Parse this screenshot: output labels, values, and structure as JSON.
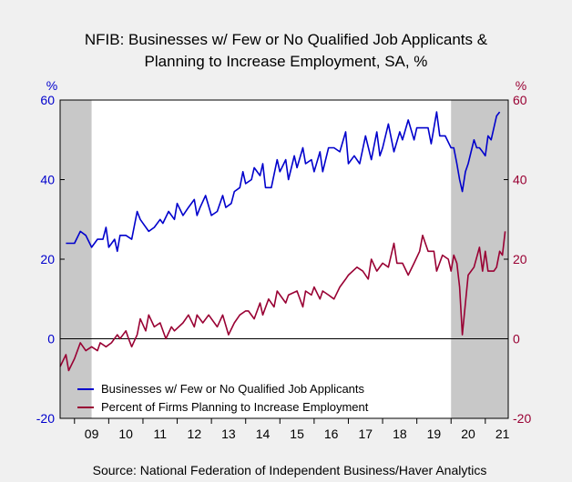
{
  "chart_data": {
    "type": "line",
    "title_line1": "NFIB: Businesses w/ Few or No Qualified Job Applicants &",
    "title_line2": "Planning to Increase Employment, SA, %",
    "left_axis": {
      "unit": "%",
      "range": [
        -20,
        60
      ],
      "ticks": [
        -20,
        0,
        20,
        40,
        60
      ],
      "color": "#0000cc"
    },
    "right_axis": {
      "unit": "%",
      "range": [
        -20,
        60
      ],
      "ticks": [
        -20,
        0,
        20,
        40,
        60
      ],
      "color": "#990033"
    },
    "x_axis": {
      "range": [
        2008.58,
        2021.67
      ],
      "tick_labels": [
        "09",
        "10",
        "11",
        "12",
        "13",
        "14",
        "15",
        "16",
        "17",
        "18",
        "19",
        "20",
        "21"
      ],
      "label_years": [
        2009,
        2010,
        2011,
        2012,
        2013,
        2014,
        2015,
        2016,
        2017,
        2018,
        2019,
        2020,
        2021
      ]
    },
    "recessions": [
      [
        2008.58,
        2009.5
      ],
      [
        2020.0,
        2021.67
      ]
    ],
    "zero_line": 0,
    "legend_position": "bottom-left",
    "series": [
      {
        "name": "Businesses w/ Few or No Qualified Job Applicants",
        "color": "#0000cc",
        "axis": "left",
        "points": [
          [
            2008.75,
            24
          ],
          [
            2009.0,
            24
          ],
          [
            2009.17,
            27
          ],
          [
            2009.33,
            26
          ],
          [
            2009.5,
            23
          ],
          [
            2009.67,
            25
          ],
          [
            2009.83,
            25
          ],
          [
            2009.92,
            28
          ],
          [
            2010.0,
            23
          ],
          [
            2010.17,
            25
          ],
          [
            2010.25,
            22
          ],
          [
            2010.33,
            26
          ],
          [
            2010.5,
            26
          ],
          [
            2010.67,
            25
          ],
          [
            2010.83,
            32
          ],
          [
            2010.92,
            30
          ],
          [
            2011.0,
            29
          ],
          [
            2011.17,
            27
          ],
          [
            2011.33,
            28
          ],
          [
            2011.5,
            30
          ],
          [
            2011.58,
            29
          ],
          [
            2011.75,
            32
          ],
          [
            2011.92,
            30
          ],
          [
            2012.0,
            34
          ],
          [
            2012.17,
            31
          ],
          [
            2012.33,
            33
          ],
          [
            2012.5,
            35
          ],
          [
            2012.58,
            31
          ],
          [
            2012.67,
            33
          ],
          [
            2012.83,
            36
          ],
          [
            2013.0,
            31
          ],
          [
            2013.17,
            32
          ],
          [
            2013.33,
            36
          ],
          [
            2013.42,
            33
          ],
          [
            2013.58,
            34
          ],
          [
            2013.67,
            37
          ],
          [
            2013.83,
            38
          ],
          [
            2013.92,
            42
          ],
          [
            2014.0,
            39
          ],
          [
            2014.17,
            40
          ],
          [
            2014.25,
            43
          ],
          [
            2014.42,
            41
          ],
          [
            2014.5,
            44
          ],
          [
            2014.58,
            38
          ],
          [
            2014.75,
            38
          ],
          [
            2014.92,
            45
          ],
          [
            2015.0,
            42
          ],
          [
            2015.17,
            45
          ],
          [
            2015.25,
            40
          ],
          [
            2015.42,
            46
          ],
          [
            2015.5,
            43
          ],
          [
            2015.67,
            48
          ],
          [
            2015.75,
            44
          ],
          [
            2015.92,
            45
          ],
          [
            2016.0,
            42
          ],
          [
            2016.17,
            47
          ],
          [
            2016.25,
            42
          ],
          [
            2016.42,
            48
          ],
          [
            2016.58,
            48
          ],
          [
            2016.75,
            47
          ],
          [
            2016.92,
            52
          ],
          [
            2017.0,
            44
          ],
          [
            2017.17,
            46
          ],
          [
            2017.33,
            44
          ],
          [
            2017.5,
            51
          ],
          [
            2017.67,
            45
          ],
          [
            2017.83,
            52
          ],
          [
            2017.92,
            46
          ],
          [
            2018.0,
            48
          ],
          [
            2018.17,
            54
          ],
          [
            2018.33,
            47
          ],
          [
            2018.5,
            52
          ],
          [
            2018.58,
            50
          ],
          [
            2018.75,
            55
          ],
          [
            2018.92,
            50
          ],
          [
            2019.0,
            53
          ],
          [
            2019.17,
            53
          ],
          [
            2019.33,
            53
          ],
          [
            2019.42,
            49
          ],
          [
            2019.58,
            57
          ],
          [
            2019.67,
            51
          ],
          [
            2019.83,
            51
          ],
          [
            2020.0,
            48
          ],
          [
            2020.08,
            48
          ],
          [
            2020.17,
            44
          ],
          [
            2020.25,
            40
          ],
          [
            2020.33,
            37
          ],
          [
            2020.42,
            42
          ],
          [
            2020.5,
            44
          ],
          [
            2020.67,
            50
          ],
          [
            2020.75,
            48
          ],
          [
            2020.83,
            48
          ],
          [
            2020.92,
            47
          ],
          [
            2021.0,
            46
          ],
          [
            2021.08,
            51
          ],
          [
            2021.17,
            50
          ],
          [
            2021.33,
            56
          ],
          [
            2021.42,
            57
          ]
        ]
      },
      {
        "name": "Percent of Firms Planning to Increase Employment",
        "color": "#990033",
        "axis": "right",
        "points": [
          [
            2008.58,
            -7
          ],
          [
            2008.75,
            -4
          ],
          [
            2008.83,
            -8
          ],
          [
            2009.0,
            -5
          ],
          [
            2009.17,
            -1
          ],
          [
            2009.33,
            -3
          ],
          [
            2009.5,
            -2
          ],
          [
            2009.67,
            -3
          ],
          [
            2009.75,
            -1
          ],
          [
            2009.92,
            -2
          ],
          [
            2010.08,
            -1
          ],
          [
            2010.25,
            1
          ],
          [
            2010.33,
            0
          ],
          [
            2010.5,
            2
          ],
          [
            2010.58,
            0
          ],
          [
            2010.67,
            -2
          ],
          [
            2010.83,
            1
          ],
          [
            2010.92,
            5
          ],
          [
            2011.08,
            2
          ],
          [
            2011.17,
            6
          ],
          [
            2011.33,
            3
          ],
          [
            2011.5,
            4
          ],
          [
            2011.67,
            0
          ],
          [
            2011.83,
            3
          ],
          [
            2011.92,
            2
          ],
          [
            2012.17,
            4
          ],
          [
            2012.33,
            6
          ],
          [
            2012.5,
            3
          ],
          [
            2012.58,
            6
          ],
          [
            2012.75,
            4
          ],
          [
            2012.92,
            6
          ],
          [
            2013.17,
            3
          ],
          [
            2013.33,
            6
          ],
          [
            2013.5,
            1
          ],
          [
            2013.67,
            4
          ],
          [
            2013.83,
            6
          ],
          [
            2014.0,
            7
          ],
          [
            2014.08,
            7
          ],
          [
            2014.25,
            5
          ],
          [
            2014.42,
            9
          ],
          [
            2014.5,
            6
          ],
          [
            2014.67,
            10
          ],
          [
            2014.83,
            8
          ],
          [
            2014.92,
            12
          ],
          [
            2015.17,
            9
          ],
          [
            2015.25,
            11
          ],
          [
            2015.5,
            12
          ],
          [
            2015.67,
            8
          ],
          [
            2015.75,
            12
          ],
          [
            2015.92,
            11
          ],
          [
            2016.0,
            13
          ],
          [
            2016.17,
            10
          ],
          [
            2016.25,
            12
          ],
          [
            2016.42,
            11
          ],
          [
            2016.58,
            10
          ],
          [
            2016.75,
            13
          ],
          [
            2016.92,
            15
          ],
          [
            2017.0,
            16
          ],
          [
            2017.25,
            18
          ],
          [
            2017.42,
            17
          ],
          [
            2017.58,
            15
          ],
          [
            2017.67,
            20
          ],
          [
            2017.83,
            17
          ],
          [
            2018.0,
            19
          ],
          [
            2018.17,
            18
          ],
          [
            2018.33,
            24
          ],
          [
            2018.42,
            19
          ],
          [
            2018.58,
            19
          ],
          [
            2018.75,
            16
          ],
          [
            2018.92,
            19
          ],
          [
            2019.08,
            22
          ],
          [
            2019.17,
            26
          ],
          [
            2019.33,
            22
          ],
          [
            2019.5,
            22
          ],
          [
            2019.58,
            17
          ],
          [
            2019.75,
            21
          ],
          [
            2019.92,
            20
          ],
          [
            2020.0,
            17
          ],
          [
            2020.08,
            21
          ],
          [
            2020.17,
            19
          ],
          [
            2020.25,
            13
          ],
          [
            2020.33,
            1
          ],
          [
            2020.5,
            16
          ],
          [
            2020.67,
            18
          ],
          [
            2020.83,
            23
          ],
          [
            2020.92,
            17
          ],
          [
            2021.0,
            22
          ],
          [
            2021.08,
            17
          ],
          [
            2021.25,
            17
          ],
          [
            2021.33,
            18
          ],
          [
            2021.42,
            22
          ],
          [
            2021.5,
            21
          ],
          [
            2021.58,
            27
          ]
        ]
      }
    ],
    "source": "Source:  National Federation of Independent Business/Haver Analytics"
  }
}
